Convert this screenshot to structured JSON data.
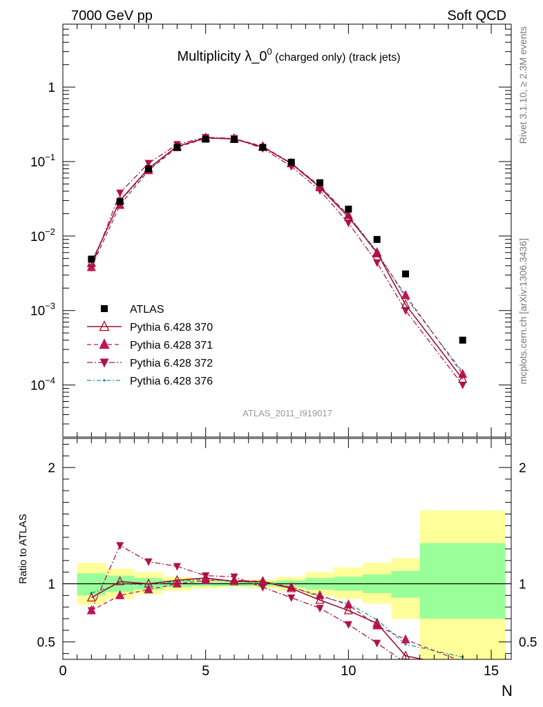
{
  "header": {
    "left": "7000 GeV pp",
    "right": "Soft QCD"
  },
  "side_labels": {
    "rivet": "Rivet 3.1.10, ≥ 2.3M events",
    "mcplots": "mcplots.cern.ch [arXiv:1306.3436]"
  },
  "watermark": "ATLAS_2011_I919017",
  "chart_data": [
    {
      "type": "scatter",
      "panel": "main",
      "title": "Multiplicity λ_0^0 (charged only) (track jets)",
      "title_parts": {
        "main": "Multiplicity λ_0",
        "sup": "0",
        "suffix": " (charged only) (track jets)"
      },
      "xlabel": "N",
      "ylabel": "",
      "yscale": "log",
      "xlim": [
        0,
        15.7
      ],
      "ylim": [
        2e-05,
        7
      ],
      "ytick_labels": [
        {
          "value": 0.0001,
          "base": "10",
          "exp": "−4"
        },
        {
          "value": 0.001,
          "base": "10",
          "exp": "−3"
        },
        {
          "value": 0.01,
          "base": "10",
          "exp": "−2"
        },
        {
          "value": 0.1,
          "base": "10",
          "exp": "−1"
        },
        {
          "value": 1,
          "base": "1",
          "exp": ""
        }
      ],
      "x": [
        1,
        2,
        3,
        4,
        5,
        6,
        7,
        8,
        9,
        10,
        11,
        12,
        14
      ],
      "series": [
        {
          "name": "ATLAS",
          "style": "data-square",
          "color": "#000000",
          "values": [
            0.0049,
            0.029,
            0.08,
            0.155,
            0.2,
            0.198,
            0.155,
            0.098,
            0.052,
            0.023,
            0.009,
            0.0031,
            0.0004
          ]
        },
        {
          "name": "Pythia 6.428 370",
          "style": "solid-open-triangle",
          "color": "#a0102a",
          "values": [
            0.0043,
            0.03,
            0.081,
            0.16,
            0.208,
            0.201,
            0.157,
            0.094,
            0.045,
            0.018,
            0.006,
            0.0012,
            0.00012
          ]
        },
        {
          "name": "Pythia 6.428 371",
          "style": "dashed-filled-triangle",
          "color": "#c0145a",
          "values": [
            0.0038,
            0.026,
            0.076,
            0.155,
            0.205,
            0.204,
            0.16,
            0.095,
            0.047,
            0.019,
            0.0058,
            0.0016,
            0.00014
          ]
        },
        {
          "name": "Pythia 6.428 372",
          "style": "dashdot-filled-down-triangle",
          "color": "#b0124a",
          "values": [
            0.0038,
            0.038,
            0.095,
            0.17,
            0.212,
            0.205,
            0.15,
            0.086,
            0.041,
            0.015,
            0.0044,
            0.001,
            0.0001
          ]
        },
        {
          "name": "Pythia 6.428 376",
          "style": "dashdot-dots",
          "color": "#1a9a9a",
          "values": [
            0.0045,
            0.029,
            0.079,
            0.158,
            0.207,
            0.201,
            0.157,
            0.095,
            0.046,
            0.019,
            0.0062,
            0.0015,
            0.00015
          ]
        }
      ]
    },
    {
      "type": "line",
      "panel": "ratio",
      "ylabel": "Ratio to ATLAS",
      "xlabel": "N",
      "xlim": [
        0,
        15.7
      ],
      "ylim": [
        0.35,
        2.25
      ],
      "xtick_labels": [
        "0",
        "5",
        "10",
        "15"
      ],
      "ytick_labels": [
        "0.5",
        "1",
        "2"
      ],
      "band_edges": [
        0.5,
        1.5,
        2.5,
        3.5,
        4.5,
        5.5,
        6.5,
        7.5,
        8.5,
        9.5,
        10.5,
        11.5,
        12.5,
        15.5
      ],
      "band_green_low": [
        0.9,
        0.93,
        0.95,
        0.97,
        0.98,
        0.98,
        0.98,
        0.97,
        0.95,
        0.94,
        0.92,
        0.88,
        0.7
      ],
      "band_green_high": [
        1.09,
        1.07,
        1.05,
        1.03,
        1.02,
        1.02,
        1.02,
        1.03,
        1.05,
        1.06,
        1.08,
        1.11,
        1.35
      ],
      "band_yellow_low": [
        0.82,
        0.87,
        0.91,
        0.94,
        0.96,
        0.97,
        0.96,
        0.94,
        0.9,
        0.87,
        0.83,
        0.7,
        0.3
      ],
      "band_yellow_high": [
        1.18,
        1.13,
        1.1,
        1.06,
        1.04,
        1.03,
        1.04,
        1.06,
        1.1,
        1.14,
        1.18,
        1.22,
        1.63
      ],
      "x": [
        1,
        2,
        3,
        4,
        5,
        6,
        7,
        8,
        9,
        10,
        11,
        12,
        14
      ],
      "series": [
        {
          "name": "Pythia 6.428 370",
          "values": [
            0.88,
            1.02,
            1.0,
            1.03,
            1.05,
            1.02,
            1.02,
            0.96,
            0.86,
            0.77,
            0.66,
            0.38,
            0.28
          ]
        },
        {
          "name": "Pythia 6.428 371",
          "values": [
            0.77,
            0.9,
            0.95,
            1.0,
            1.03,
            1.03,
            1.02,
            0.97,
            0.9,
            0.82,
            0.64,
            0.52,
            0.33
          ]
        },
        {
          "name": "Pythia 6.428 372",
          "values": [
            0.77,
            1.33,
            1.19,
            1.15,
            1.07,
            1.06,
            0.97,
            0.88,
            0.79,
            0.65,
            0.49,
            0.32,
            0.25
          ]
        },
        {
          "name": "Pythia 6.428 376",
          "values": [
            0.92,
            1.0,
            0.99,
            1.02,
            1.04,
            1.02,
            1.01,
            0.97,
            0.89,
            0.83,
            0.69,
            0.48,
            0.37
          ]
        }
      ]
    }
  ]
}
